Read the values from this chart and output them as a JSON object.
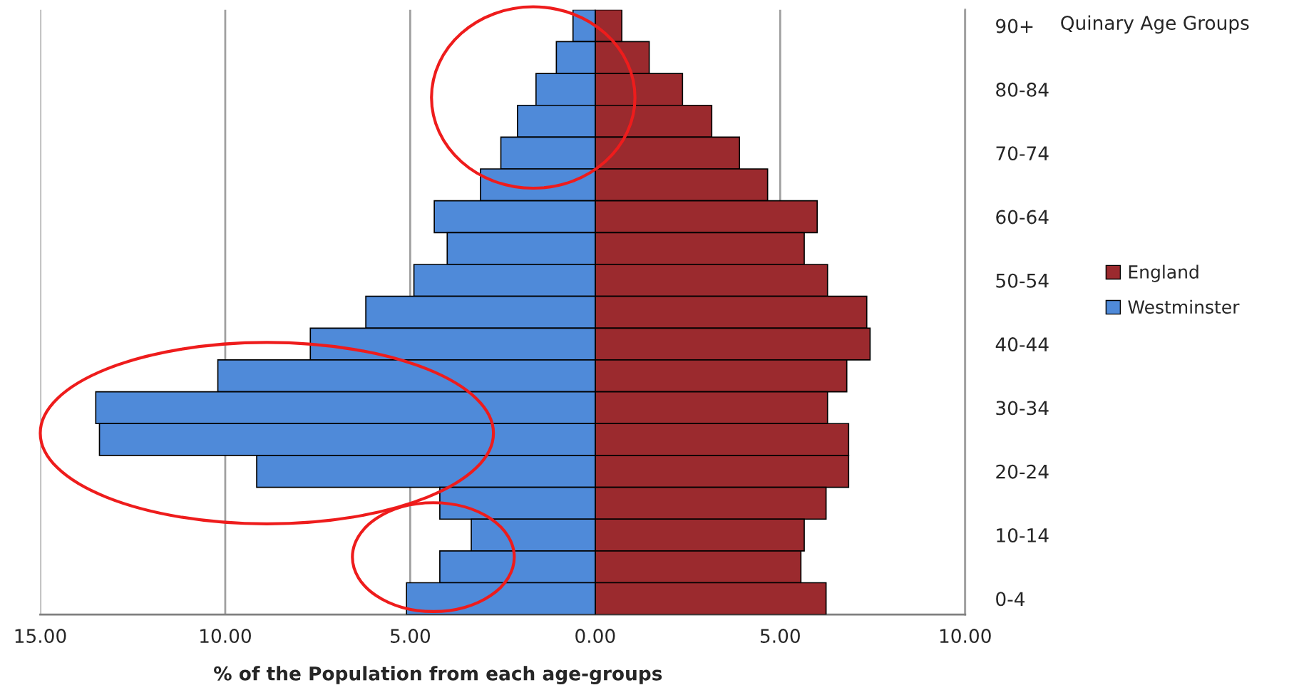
{
  "chart_data": {
    "type": "bar",
    "orientation": "horizontal",
    "xlabel": "% of the Population from each age-groups",
    "ylabel": "Quinary Age Groups",
    "categories": [
      "90+",
      null,
      "80-84",
      null,
      "70-74",
      null,
      "60-64",
      null,
      "50-54",
      null,
      "40-44",
      null,
      "30-34",
      null,
      "20-24",
      null,
      "10-14",
      null,
      "0-4"
    ],
    "series": [
      {
        "name": "England",
        "color": "#9b2a2e",
        "values": [
          0.72,
          1.46,
          2.36,
          3.15,
          3.9,
          4.66,
          6.0,
          5.65,
          6.28,
          7.34,
          7.43,
          6.8,
          6.28,
          6.85,
          6.85,
          6.24,
          5.65,
          5.56,
          6.24
        ]
      },
      {
        "name": "Westminster",
        "color": "#4f8ad9",
        "values": [
          -0.6,
          -1.05,
          -1.6,
          -2.1,
          -2.55,
          -3.1,
          -4.35,
          -4.0,
          -4.9,
          -6.2,
          -7.7,
          -10.2,
          -13.5,
          -13.4,
          -9.15,
          -4.2,
          -3.35,
          -4.2,
          -5.1
        ]
      }
    ],
    "xlim": [
      -15,
      10
    ],
    "xticks": [
      {
        "value": -15,
        "label": "15.00"
      },
      {
        "value": -10,
        "label": "10.00"
      },
      {
        "value": -5,
        "label": "5.00"
      },
      {
        "value": 0,
        "label": "0.00"
      },
      {
        "value": 5,
        "label": "5.00"
      },
      {
        "value": 10,
        "label": "10.00"
      }
    ],
    "grid": "x",
    "legend": "right",
    "stacked": true
  }
}
